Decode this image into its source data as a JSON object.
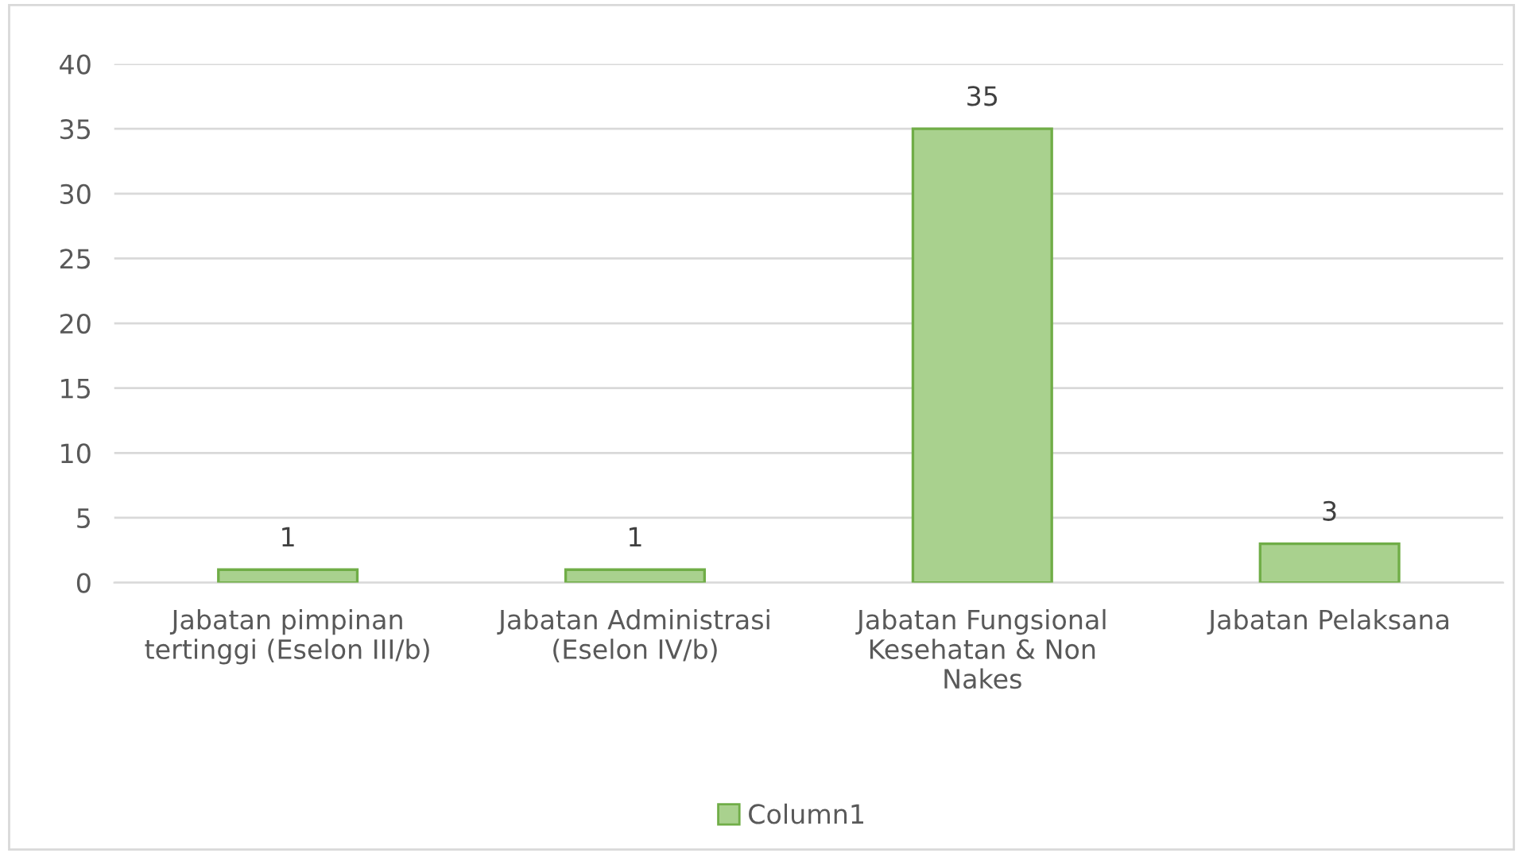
{
  "chart_data": {
    "type": "bar",
    "categories": [
      "Jabatan pimpinan\ntertinggi (Eselon III/b)",
      "Jabatan Administrasi\n(Eselon IV/b)",
      "Jabatan Fungsional\nKesehatan & Non\nNakes",
      "Jabatan Pelaksana"
    ],
    "series": [
      {
        "name": "Column1",
        "color": "#a9d18e",
        "values": [
          1,
          1,
          35,
          3
        ]
      }
    ],
    "ylim": [
      0,
      40
    ],
    "yticks": [
      0,
      5,
      10,
      15,
      20,
      25,
      30,
      35,
      40
    ],
    "grid": "y",
    "legend": "bottom",
    "data_labels": true
  }
}
